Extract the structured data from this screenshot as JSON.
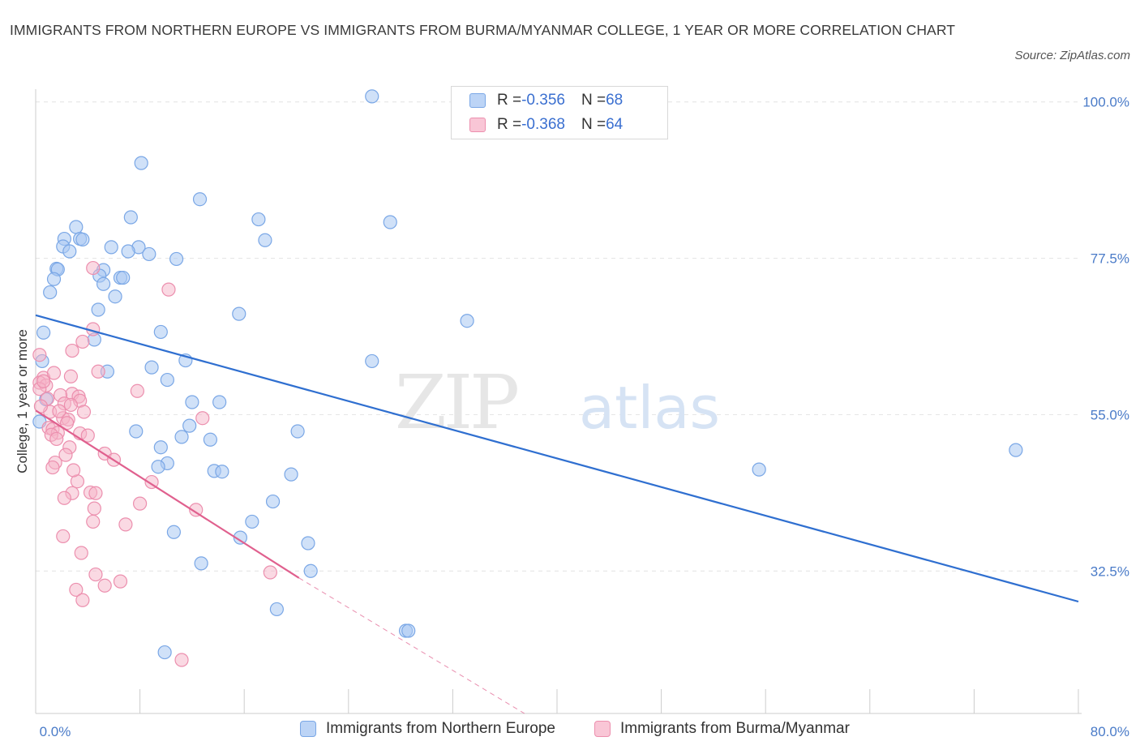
{
  "header": {
    "title": "IMMIGRANTS FROM NORTHERN EUROPE VS IMMIGRANTS FROM BURMA/MYANMAR COLLEGE, 1 YEAR OR MORE CORRELATION CHART",
    "source": "Source: ZipAtlas.com"
  },
  "watermark": {
    "zip": "ZIP",
    "atlas": "atlas"
  },
  "legend": {
    "row1": {
      "r_label": "R = ",
      "r_value": "-0.356",
      "n_label": "N = ",
      "n_value": "68"
    },
    "row2": {
      "r_label": "R = ",
      "r_value": "-0.368",
      "n_label": "N = ",
      "n_value": "64"
    }
  },
  "colors": {
    "blue_fill": "#a9c8f3",
    "blue_stroke": "#7aa7e6",
    "blue_line": "#2f6fd0",
    "pink_fill": "#f6b3c8",
    "pink_stroke": "#ec8fae",
    "pink_line": "#e0608e",
    "grid": "#e2e2e2",
    "axis_label": "#4a7bc8"
  },
  "chart_data": {
    "type": "scatter",
    "title": "IMMIGRANTS FROM NORTHERN EUROPE VS IMMIGRANTS FROM BURMA/MYANMAR COLLEGE, 1 YEAR OR MORE CORRELATION CHART",
    "xlabel": "",
    "ylabel": "College, 1 year or more",
    "xlim": [
      0,
      80
    ],
    "ylim": [
      12,
      103
    ],
    "x_tick_labels": [
      "0.0%",
      "80.0%"
    ],
    "y_ticks": [
      32.5,
      55.0,
      77.5,
      100.0
    ],
    "y_tick_labels": [
      "32.5%",
      "55.0%",
      "77.5%",
      "100.0%"
    ],
    "grid": true,
    "legend_position": "top-center",
    "series": [
      {
        "name": "Immigrants from Northern Europe",
        "color": "#a9c8f3",
        "R": -0.356,
        "N": 68,
        "trend": {
          "x": [
            0,
            80
          ],
          "y": [
            69.3,
            28.1
          ]
        },
        "points": [
          [
            25.8,
            100.8
          ],
          [
            8.1,
            91.2
          ],
          [
            12.6,
            86.0
          ],
          [
            7.3,
            83.4
          ],
          [
            17.1,
            83.1
          ],
          [
            27.2,
            82.7
          ],
          [
            3.1,
            82.0
          ],
          [
            2.2,
            80.3
          ],
          [
            3.4,
            80.3
          ],
          [
            3.6,
            80.2
          ],
          [
            17.6,
            80.1
          ],
          [
            2.1,
            79.2
          ],
          [
            5.8,
            79.1
          ],
          [
            7.9,
            79.1
          ],
          [
            2.6,
            78.5
          ],
          [
            7.1,
            78.5
          ],
          [
            8.7,
            78.1
          ],
          [
            10.8,
            77.4
          ],
          [
            1.6,
            76.0
          ],
          [
            1.7,
            75.9
          ],
          [
            5.2,
            75.8
          ],
          [
            4.9,
            75.0
          ],
          [
            6.5,
            74.7
          ],
          [
            6.7,
            74.7
          ],
          [
            1.4,
            74.5
          ],
          [
            5.2,
            73.8
          ],
          [
            6.1,
            72.0
          ],
          [
            1.1,
            72.6
          ],
          [
            4.8,
            70.1
          ],
          [
            15.6,
            69.5
          ],
          [
            33.1,
            68.5
          ],
          [
            9.6,
            66.9
          ],
          [
            0.6,
            66.8
          ],
          [
            4.5,
            65.8
          ],
          [
            11.5,
            62.8
          ],
          [
            25.8,
            62.7
          ],
          [
            8.9,
            61.8
          ],
          [
            5.5,
            61.2
          ],
          [
            10.1,
            60.0
          ],
          [
            0.5,
            62.7
          ],
          [
            12.0,
            56.8
          ],
          [
            14.1,
            56.8
          ],
          [
            11.8,
            53.4
          ],
          [
            7.7,
            52.6
          ],
          [
            20.1,
            52.6
          ],
          [
            11.2,
            51.8
          ],
          [
            13.4,
            51.4
          ],
          [
            9.6,
            50.3
          ],
          [
            75.2,
            49.9
          ],
          [
            10.1,
            48.0
          ],
          [
            9.4,
            47.5
          ],
          [
            13.7,
            46.9
          ],
          [
            14.3,
            46.8
          ],
          [
            55.5,
            47.1
          ],
          [
            19.6,
            46.4
          ],
          [
            18.2,
            42.5
          ],
          [
            16.6,
            39.6
          ],
          [
            10.6,
            38.1
          ],
          [
            15.7,
            37.3
          ],
          [
            20.9,
            36.5
          ],
          [
            12.7,
            33.6
          ],
          [
            21.1,
            32.5
          ],
          [
            18.5,
            27.0
          ],
          [
            28.4,
            23.9
          ],
          [
            28.6,
            23.9
          ],
          [
            9.9,
            20.8
          ],
          [
            0.3,
            54.0
          ],
          [
            0.8,
            57.2
          ]
        ]
      },
      {
        "name": "Immigrants from Burma/Myanmar",
        "color": "#f6b3c8",
        "R": -0.368,
        "N": 64,
        "trend": {
          "x": [
            0,
            20.2
          ],
          "y": [
            55.6,
            31.5
          ]
        },
        "trend_extension": {
          "x": [
            20.2,
            37.5
          ],
          "y": [
            31.5,
            12.0
          ]
        },
        "points": [
          [
            4.4,
            76.1
          ],
          [
            10.2,
            73.0
          ],
          [
            4.4,
            67.3
          ],
          [
            3.6,
            65.5
          ],
          [
            2.8,
            64.2
          ],
          [
            0.3,
            63.6
          ],
          [
            4.8,
            61.2
          ],
          [
            2.7,
            60.5
          ],
          [
            0.6,
            60.3
          ],
          [
            0.3,
            59.6
          ],
          [
            0.8,
            59.2
          ],
          [
            0.3,
            58.7
          ],
          [
            7.8,
            58.4
          ],
          [
            2.8,
            58.0
          ],
          [
            1.9,
            57.8
          ],
          [
            3.3,
            57.6
          ],
          [
            0.9,
            57.3
          ],
          [
            3.4,
            57.0
          ],
          [
            2.2,
            56.6
          ],
          [
            2.7,
            56.4
          ],
          [
            1.1,
            55.4
          ],
          [
            3.7,
            55.4
          ],
          [
            2.1,
            54.5
          ],
          [
            2.5,
            54.3
          ],
          [
            12.8,
            54.5
          ],
          [
            1.0,
            53.1
          ],
          [
            1.3,
            52.9
          ],
          [
            1.7,
            52.4
          ],
          [
            1.2,
            52.1
          ],
          [
            1.6,
            51.5
          ],
          [
            3.4,
            52.3
          ],
          [
            2.6,
            50.3
          ],
          [
            2.3,
            49.2
          ],
          [
            5.3,
            49.4
          ],
          [
            1.5,
            48.1
          ],
          [
            1.3,
            47.4
          ],
          [
            8.9,
            45.3
          ],
          [
            3.2,
            45.4
          ],
          [
            2.8,
            43.7
          ],
          [
            4.2,
            43.8
          ],
          [
            4.6,
            43.7
          ],
          [
            2.2,
            43.0
          ],
          [
            8.0,
            42.2
          ],
          [
            4.5,
            41.5
          ],
          [
            12.3,
            41.3
          ],
          [
            4.4,
            39.6
          ],
          [
            6.9,
            39.2
          ],
          [
            2.1,
            37.5
          ],
          [
            3.5,
            35.1
          ],
          [
            18.0,
            32.3
          ],
          [
            4.6,
            32.0
          ],
          [
            6.5,
            31.0
          ],
          [
            5.3,
            30.4
          ],
          [
            3.1,
            29.8
          ],
          [
            3.6,
            28.3
          ],
          [
            11.2,
            19.7
          ],
          [
            0.6,
            59.8
          ],
          [
            2.9,
            47.0
          ],
          [
            1.8,
            55.5
          ],
          [
            4.0,
            52.0
          ],
          [
            6.0,
            48.5
          ],
          [
            0.4,
            56.2
          ],
          [
            1.4,
            61.0
          ],
          [
            2.4,
            53.8
          ]
        ]
      }
    ]
  },
  "bottom_legend": {
    "item1": "Immigrants from Northern Europe",
    "item2": "Immigrants from Burma/Myanmar"
  }
}
